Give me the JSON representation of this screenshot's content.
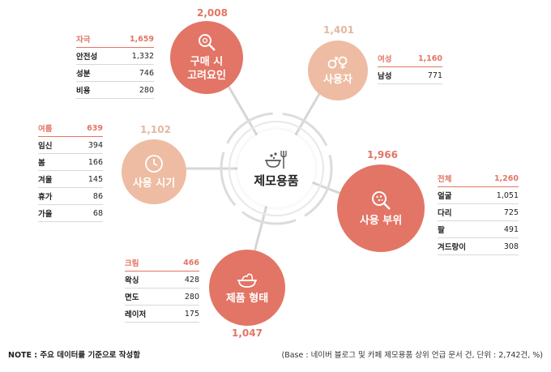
{
  "center": {
    "title": "제모용품",
    "icon": "bowl-utensils-icon"
  },
  "nodes": {
    "purchase": {
      "line1": "구매 시",
      "line2": "고려요인",
      "count": "2,008",
      "icon": "magnifier-icon"
    },
    "user": {
      "label": "사용자",
      "count": "1,401",
      "icon": "gender-icon"
    },
    "time": {
      "label": "사용 시기",
      "count": "1,102",
      "icon": "clock-icon"
    },
    "part": {
      "label": "사용 부위",
      "count": "1,966",
      "icon": "magnifier-dots-icon"
    },
    "form": {
      "label": "제품 형태",
      "count": "1,047",
      "icon": "cream-bowl-icon"
    }
  },
  "tables": {
    "purchase": [
      {
        "k": "자극",
        "v": "1,659"
      },
      {
        "k": "안전성",
        "v": "1,332"
      },
      {
        "k": "성분",
        "v": "746"
      },
      {
        "k": "비용",
        "v": "280"
      }
    ],
    "user": [
      {
        "k": "여성",
        "v": "1,160"
      },
      {
        "k": "남성",
        "v": "771"
      }
    ],
    "time": [
      {
        "k": "여름",
        "v": "639"
      },
      {
        "k": "임신",
        "v": "394"
      },
      {
        "k": "봄",
        "v": "166"
      },
      {
        "k": "겨울",
        "v": "145"
      },
      {
        "k": "휴가",
        "v": "86"
      },
      {
        "k": "가을",
        "v": "68"
      }
    ],
    "part": [
      {
        "k": "전체",
        "v": "1,260"
      },
      {
        "k": "얼굴",
        "v": "1,051"
      },
      {
        "k": "다리",
        "v": "725"
      },
      {
        "k": "팔",
        "v": "491"
      },
      {
        "k": "겨드랑이",
        "v": "308"
      }
    ],
    "form": [
      {
        "k": "크림",
        "v": "466"
      },
      {
        "k": "왁싱",
        "v": "428"
      },
      {
        "k": "면도",
        "v": "280"
      },
      {
        "k": "레이저",
        "v": "175"
      }
    ]
  },
  "colors": {
    "dark": "#e27565",
    "light": "#eebca3"
  },
  "footer": {
    "note": "NOTE : 주요 데이터를 기준으로 작성함",
    "base": "(Base : 네이버 블로그 및 카페 제모용품 상위 언급 문서 건, 단위 : 2,742건, %)"
  }
}
